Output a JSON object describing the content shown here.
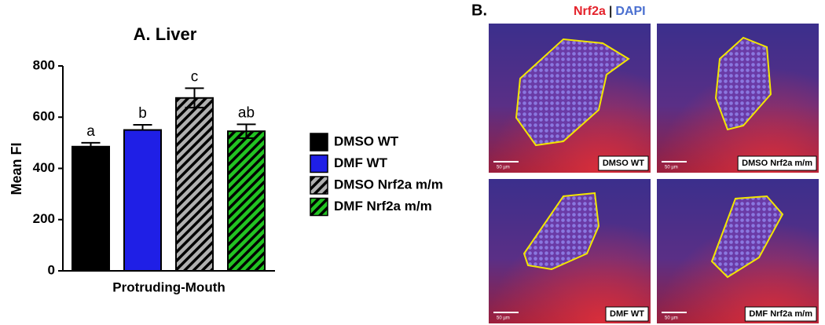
{
  "chart_data": {
    "type": "bar",
    "title": "A. Liver",
    "y_label": "Mean FI",
    "categories": [
      "Protruding-Mouth"
    ],
    "ylim": [
      0,
      800
    ],
    "yticks": [
      0,
      200,
      400,
      600,
      800
    ],
    "series": [
      {
        "name": "DMSO WT",
        "color": "#000000",
        "hatch": false,
        "values": [
          485
        ],
        "errors": [
          15
        ],
        "annotation": "a"
      },
      {
        "name": "DMF WT",
        "color": "#1f1fe6",
        "hatch": false,
        "values": [
          550
        ],
        "errors": [
          20
        ],
        "annotation": "b"
      },
      {
        "name": "DMSO Nrf2a m/m",
        "color": "#b0b0b0",
        "hatch": true,
        "values": [
          675
        ],
        "errors": [
          38
        ],
        "annotation": "c"
      },
      {
        "name": "DMF Nrf2a m/m",
        "color": "#22c322",
        "hatch": true,
        "values": [
          545
        ],
        "errors": [
          27
        ],
        "annotation": "ab"
      }
    ]
  },
  "panel_b": {
    "label": "B.",
    "stain_title": [
      {
        "text": "Nrf2a",
        "color": "#e4222b"
      },
      {
        "text": "|",
        "color": "#222222"
      },
      {
        "text": "DAPI",
        "color": "#4a6fd0"
      }
    ],
    "images": [
      {
        "label": "DMSO WT",
        "scale": "50 µm"
      },
      {
        "label": "DMSO Nrf2a m/m",
        "scale": "50 µm"
      },
      {
        "label": "DMF WT",
        "scale": "50 µm"
      },
      {
        "label": "DMF Nrf2a m/m",
        "scale": "50 µm"
      }
    ]
  }
}
